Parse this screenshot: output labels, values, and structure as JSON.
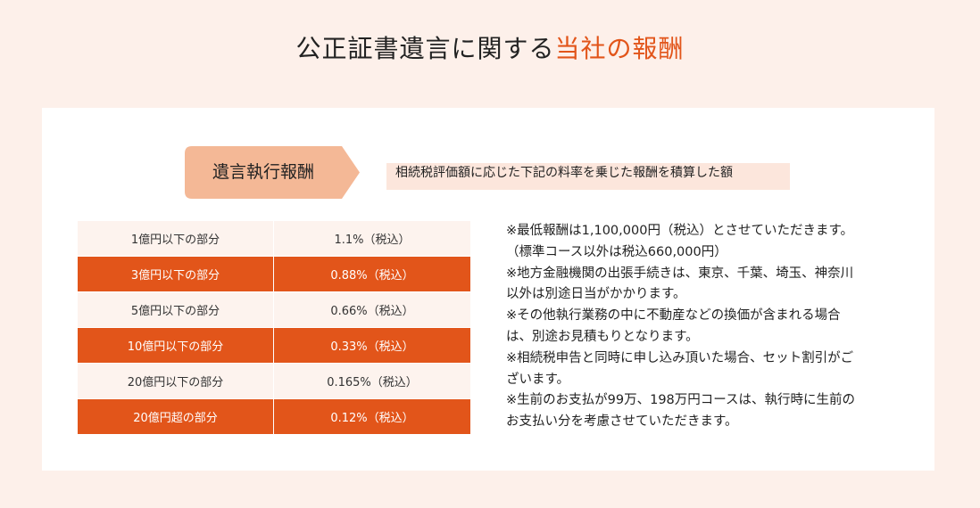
{
  "header": {
    "title_main": "公正証書遺言に関する",
    "title_accent": "当社の報酬"
  },
  "fee_section": {
    "tag_label": "遺言執行報酬",
    "description": "相続税評価額に応じた下記の料率を乗じた報酬を積算した額"
  },
  "rates": [
    {
      "range": "1億円以下の部分",
      "rate": "1.1%（税込）"
    },
    {
      "range": "3億円以下の部分",
      "rate": "0.88%（税込）"
    },
    {
      "range": "5億円以下の部分",
      "rate": "0.66%（税込）"
    },
    {
      "range": "10億円以下の部分",
      "rate": "0.33%（税込）"
    },
    {
      "range": "20億円以下の部分",
      "rate": "0.165%（税込）"
    },
    {
      "range": "20億円超の部分",
      "rate": "0.12%（税込）"
    }
  ],
  "notes": [
    "※最低報酬は1,100,000円（税込）とさせていただきます。",
    "（標準コース以外は税込660,000円）",
    "※地方金融機関の出張手続きは、東京、千葉、埼玉、神奈川",
    "以外は別途日当がかかります。",
    "※その他執行業務の中に不動産などの換価が含まれる場合",
    "は、別途お見積もりとなります。",
    "※相続税申告と同時に申し込み頂いた場合、セット割引がご",
    "ざいます。",
    "※生前のお支払が99万、198万円コースは、執行時に生前の",
    "お支払い分を考慮させていただきます。"
  ],
  "colors": {
    "page_background": "#fdf0ea",
    "accent": "#e2551a",
    "tag_fill": "#f4b896",
    "description_band": "#fce6dc",
    "light_row": "#fdf3ee"
  }
}
